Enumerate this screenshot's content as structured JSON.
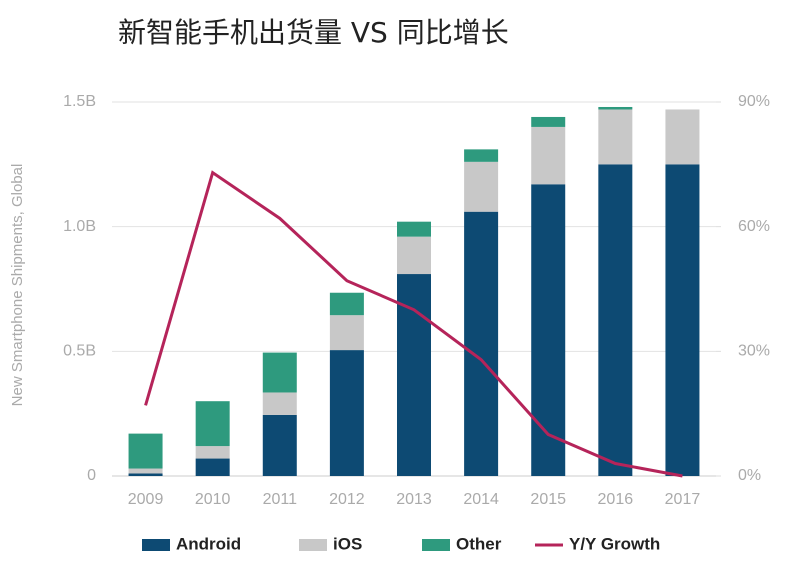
{
  "chart_data": {
    "type": "bar",
    "stacked": true,
    "title": "新智能手机出货量 VS 同比增长",
    "y_label": "New Smartphone Shipments, Global",
    "categories": [
      "2009",
      "2010",
      "2011",
      "2012",
      "2013",
      "2014",
      "2015",
      "2016",
      "2017"
    ],
    "series": [
      {
        "name": "Android",
        "color": "#0d4a73",
        "values": [
          0.01,
          0.07,
          0.245,
          0.505,
          0.81,
          1.06,
          1.17,
          1.25,
          1.25
        ]
      },
      {
        "name": "iOS",
        "color": "#c8c8c8",
        "values": [
          0.02,
          0.05,
          0.09,
          0.14,
          0.15,
          0.2,
          0.23,
          0.22,
          0.22
        ]
      },
      {
        "name": "Other",
        "color": "#2e9a7e",
        "values": [
          0.14,
          0.18,
          0.16,
          0.09,
          0.06,
          0.05,
          0.04,
          0.01,
          0
        ]
      },
      {
        "name": "Y/Y Growth",
        "color": "#b5245a",
        "type": "line",
        "axis": "y2",
        "values": [
          17,
          73,
          62,
          47,
          40,
          28,
          10,
          3,
          0
        ]
      }
    ],
    "ylim": [
      0,
      1.5
    ],
    "yticks": [
      0,
      {
        "value": 0.5,
        "label": "0.5B"
      },
      {
        "value": 1.0,
        "label": "1.0B"
      },
      {
        "value": 1.5,
        "label": "1.5B"
      }
    ],
    "y2lim": [
      0,
      90
    ],
    "y2ticks": [
      {
        "value": 0,
        "label": "0%"
      },
      {
        "value": 30,
        "label": "30%"
      },
      {
        "value": 60,
        "label": "60%"
      },
      {
        "value": 90,
        "label": "90%"
      }
    ],
    "grid": true,
    "legend": "bottom"
  }
}
